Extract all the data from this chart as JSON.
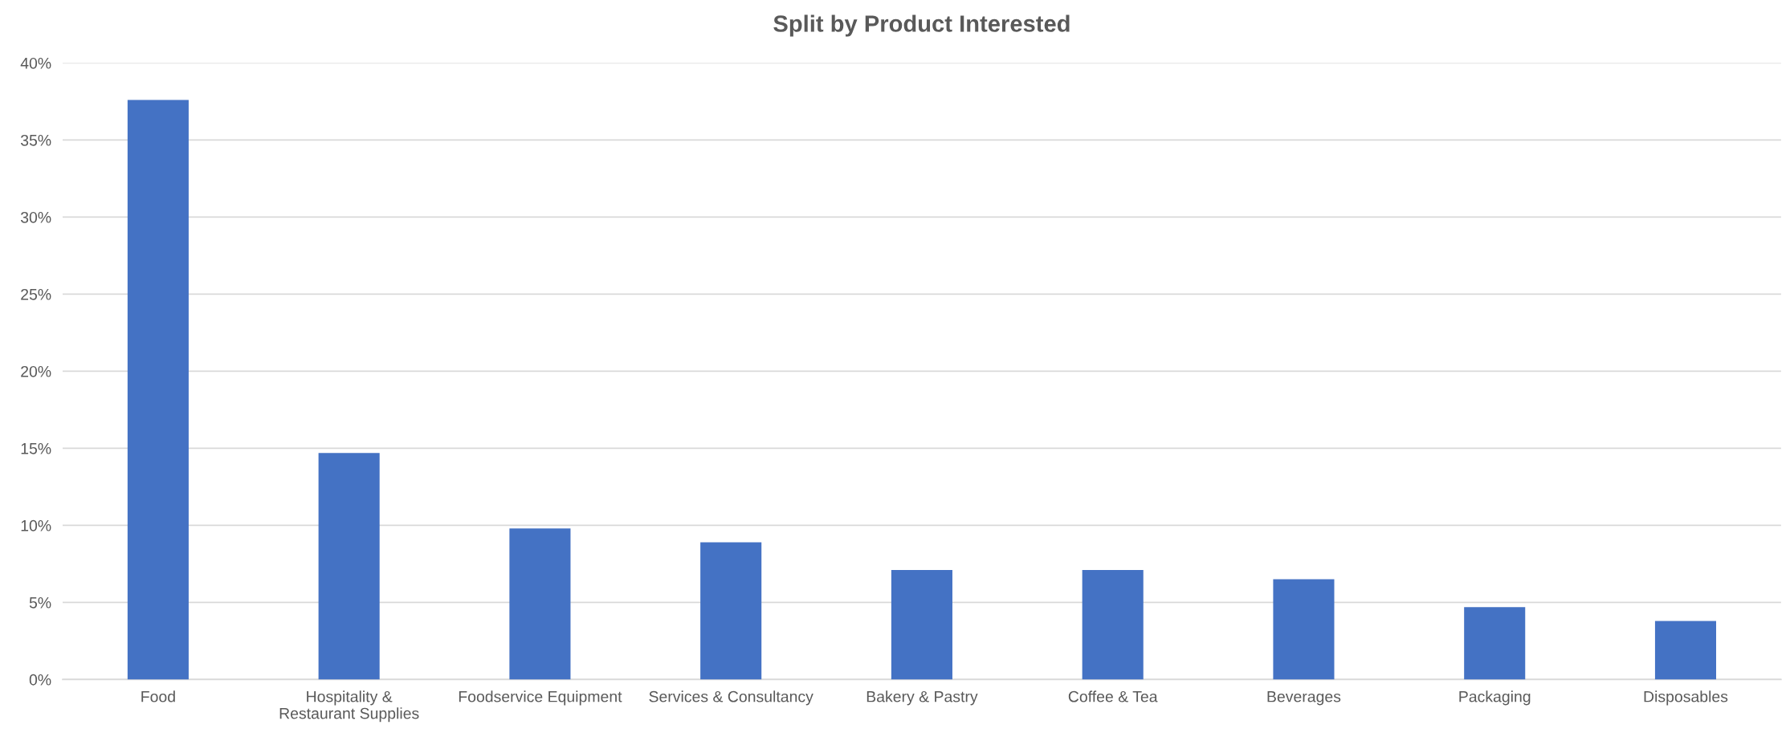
{
  "chart_data": {
    "type": "bar",
    "title": "Split by Product Interested",
    "categories": [
      "Food",
      "Hospitality &\nRestaurant Supplies",
      "Foodservice Equipment",
      "Services & Consultancy",
      "Bakery & Pastry",
      "Coffee & Tea",
      "Beverages",
      "Packaging",
      "Disposables"
    ],
    "values": [
      37.6,
      14.7,
      9.8,
      8.9,
      7.1,
      7.1,
      6.5,
      4.7,
      3.8
    ],
    "color": "#4472c4",
    "ylim": [
      0,
      40
    ],
    "yticks": [
      {
        "value": 0,
        "label": "0%"
      },
      {
        "value": 5,
        "label": "5%"
      },
      {
        "value": 10,
        "label": "10%"
      },
      {
        "value": 15,
        "label": "15%"
      },
      {
        "value": 20,
        "label": "20%"
      },
      {
        "value": 25,
        "label": "25%"
      },
      {
        "value": 30,
        "label": "30%"
      },
      {
        "value": 35,
        "label": "35%"
      },
      {
        "value": 40,
        "label": "40%"
      }
    ],
    "grid": "y",
    "legend": false
  }
}
